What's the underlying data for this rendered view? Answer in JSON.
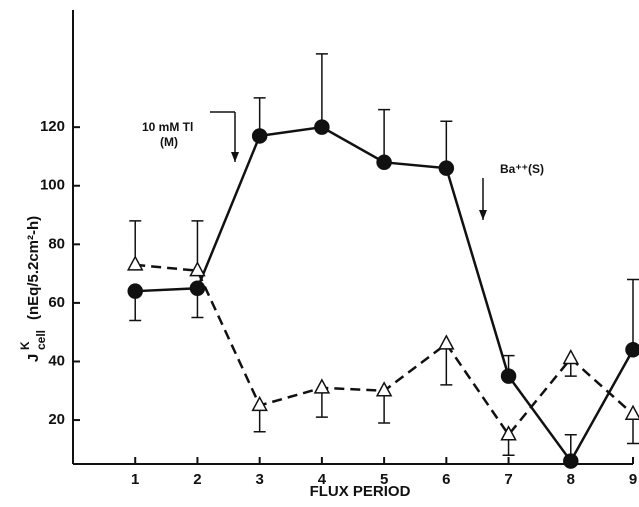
{
  "chart_data": {
    "type": "line",
    "x_label": "FLUX PERIOD",
    "y_label": {
      "symbol": "J",
      "superscript": "K",
      "subscript": "cell",
      "units": "(nEq/5.2cm²-h)"
    },
    "x": [
      1,
      2,
      3,
      4,
      5,
      6,
      7,
      8,
      9
    ],
    "xlim": [
      0,
      9
    ],
    "xticks": [
      1,
      2,
      3,
      4,
      5,
      6,
      7,
      8,
      9
    ],
    "ylim": [
      5,
      160
    ],
    "yticks": [
      20,
      40,
      60,
      80,
      100,
      120
    ],
    "series": [
      {
        "marker": "circle",
        "filled": true,
        "dashed": false,
        "color": "#111",
        "values": [
          64,
          65,
          117,
          120,
          108,
          106,
          35,
          6,
          44
        ],
        "errors": [
          10,
          10,
          13,
          25,
          18,
          16,
          7,
          9,
          24
        ],
        "error_side": [
          "down",
          "down",
          "up",
          "up",
          "up",
          "up",
          "up",
          "up",
          "up"
        ]
      },
      {
        "marker": "triangle",
        "filled": false,
        "dashed": true,
        "color": "#111",
        "values": [
          73,
          71,
          25,
          31,
          30,
          46,
          15,
          41,
          22
        ],
        "errors": [
          15,
          17,
          9,
          10,
          11,
          14,
          7,
          6,
          10
        ],
        "error_side": [
          "up",
          "up",
          "down",
          "down",
          "down",
          "down",
          "down",
          "down",
          "down"
        ]
      }
    ],
    "annotations": [
      {
        "lines": [
          "10 mM Tl",
          "(M)"
        ]
      },
      {
        "lines": [
          "Ba⁺⁺(S)"
        ]
      }
    ]
  }
}
